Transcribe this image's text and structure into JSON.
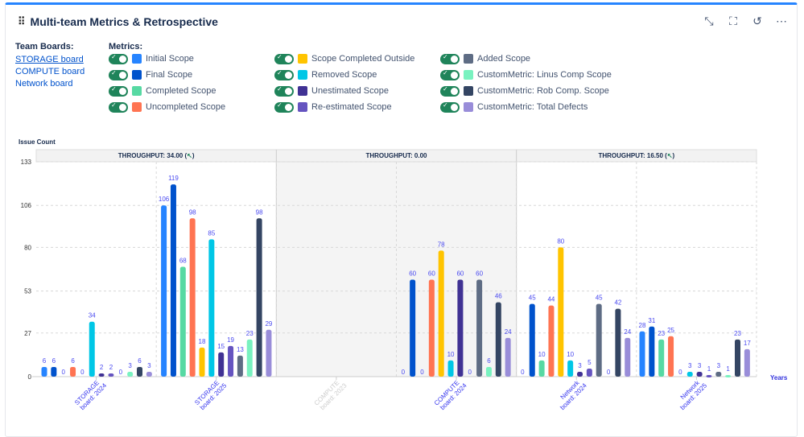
{
  "header": {
    "title": "Multi-team Metrics & Retrospective",
    "icons": [
      "collapse-icon",
      "fullscreen-icon",
      "refresh-icon",
      "more-icon"
    ]
  },
  "boards": {
    "label": "Team Boards:",
    "items": [
      "STORAGE board",
      "COMPUTE board",
      "Network board"
    ]
  },
  "metrics": {
    "label": "Metrics:",
    "items": [
      {
        "label": "Initial Scope",
        "color": "#2684FF",
        "on": true
      },
      {
        "label": "Final Scope",
        "color": "#0052CC",
        "on": true
      },
      {
        "label": "Completed Scope",
        "color": "#57D9A3",
        "on": true
      },
      {
        "label": "Uncompleted Scope",
        "color": "#FF7452",
        "on": true
      },
      {
        "label": "Scope Completed Outside",
        "color": "#FFC400",
        "on": true
      },
      {
        "label": "Removed Scope",
        "color": "#00C7E6",
        "on": true
      },
      {
        "label": "Unestimated Scope",
        "color": "#403294",
        "on": true
      },
      {
        "label": "Re-estimated Scope",
        "color": "#6554C0",
        "on": true
      },
      {
        "label": "Added Scope",
        "color": "#5E6C84",
        "on": true
      },
      {
        "label": "CustomMetric: Linus Comp Scope",
        "color": "#79F2C0",
        "on": true
      },
      {
        "label": "CustomMetric: Rob Comp. Scope",
        "color": "#344563",
        "on": true
      },
      {
        "label": "CustomMetric: Total Defects",
        "color": "#998DD9",
        "on": true
      }
    ]
  },
  "chart_data": {
    "type": "bar",
    "ylabel": "Issue Count",
    "xlabel": "Years",
    "ylim": [
      0,
      133
    ],
    "yticks": [
      0,
      27,
      53,
      80,
      106,
      133
    ],
    "grid": true,
    "bands": [
      {
        "label": "THROUGHPUT: 34.00 (",
        "arrow": "↖",
        "close": ")",
        "groups": [
          0,
          1
        ]
      },
      {
        "label": "THROUGHPUT: 0.00",
        "arrow": "",
        "close": "",
        "groups": [
          2,
          3
        ]
      },
      {
        "label": "THROUGHPUT: 16.50 (",
        "arrow": "↖",
        "close": ")",
        "groups": [
          4,
          5
        ]
      }
    ],
    "categories": [
      {
        "line1": "STORAGE",
        "line2": "board: 2024",
        "faded": false
      },
      {
        "line1": "STORAGE",
        "line2": "board: 2025",
        "faded": false
      },
      {
        "line1": "COMPUTE",
        "line2": "board: 2023",
        "faded": true
      },
      {
        "line1": "COMPUTE",
        "line2": "board: 2024",
        "faded": false
      },
      {
        "line1": "Network",
        "line2": "board: 2024",
        "faded": false
      },
      {
        "line1": "Network",
        "line2": "board: 2025",
        "faded": false
      }
    ],
    "series_values": [
      [
        6,
        6,
        0,
        6,
        0,
        34,
        2,
        2,
        0,
        3,
        6,
        3
      ],
      [
        106,
        119,
        68,
        98,
        18,
        85,
        15,
        19,
        13,
        23,
        98,
        29
      ],
      [
        null,
        null,
        null,
        null,
        null,
        null,
        null,
        null,
        null,
        null,
        null,
        null
      ],
      [
        0,
        60,
        0,
        60,
        78,
        10,
        60,
        0,
        60,
        6,
        46,
        24
      ],
      [
        0,
        45,
        10,
        44,
        80,
        10,
        3,
        5,
        45,
        0,
        42,
        24
      ],
      [
        28,
        31,
        23,
        25,
        0,
        3,
        3,
        1,
        3,
        1,
        23,
        17
      ]
    ]
  }
}
